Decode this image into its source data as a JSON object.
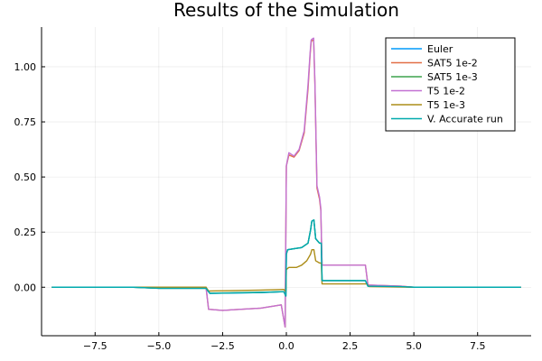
{
  "chart_data": {
    "type": "line",
    "title": "Results of the Simulation",
    "xlabel": "",
    "ylabel": "",
    "xlim": [
      -9.6,
      9.6
    ],
    "ylim": [
      -0.22,
      1.18
    ],
    "xticks": [
      -7.5,
      -5.0,
      -2.5,
      0.0,
      2.5,
      5.0,
      7.5
    ],
    "xtick_labels": [
      "−7.5",
      "−5.0",
      "−2.5",
      "0.0",
      "2.5",
      "5.0",
      "7.5"
    ],
    "yticks": [
      0.0,
      0.25,
      0.5,
      0.75,
      1.0
    ],
    "ytick_labels": [
      "0.00",
      "0.25",
      "0.50",
      "0.75",
      "1.00"
    ],
    "grid": true,
    "legend_position": "top-right",
    "series": [
      {
        "name": "Euler",
        "color": "#009AFA",
        "points": [
          [
            -9.2,
            0.0
          ],
          [
            -6.0,
            0.0
          ],
          [
            -5.0,
            -0.005
          ],
          [
            -3.15,
            -0.005
          ],
          [
            -3.0,
            -0.028
          ],
          [
            -2.5,
            -0.027
          ],
          [
            -1.0,
            -0.024
          ],
          [
            -0.1,
            -0.02
          ],
          [
            -0.02,
            -0.04
          ],
          [
            0.0,
            0.15
          ],
          [
            0.05,
            0.17
          ],
          [
            0.3,
            0.175
          ],
          [
            0.6,
            0.18
          ],
          [
            0.85,
            0.2
          ],
          [
            0.95,
            0.26
          ],
          [
            1.0,
            0.3
          ],
          [
            1.08,
            0.305
          ],
          [
            1.15,
            0.22
          ],
          [
            1.3,
            0.2
          ],
          [
            1.37,
            0.2
          ],
          [
            1.4,
            0.03
          ],
          [
            2.0,
            0.03
          ],
          [
            3.0,
            0.03
          ],
          [
            3.1,
            0.03
          ],
          [
            3.2,
            0.005
          ],
          [
            4.5,
            0.003
          ],
          [
            5.0,
            0.0
          ],
          [
            9.2,
            0.0
          ]
        ]
      },
      {
        "name": "SAT5 1e-2",
        "color": "#E26F46",
        "points": [
          [
            -9.2,
            0.0
          ],
          [
            -3.15,
            0.0
          ],
          [
            -3.05,
            -0.1
          ],
          [
            -2.5,
            -0.105
          ],
          [
            -1.0,
            -0.095
          ],
          [
            -0.2,
            -0.08
          ],
          [
            -0.05,
            -0.18
          ],
          [
            0.0,
            0.55
          ],
          [
            0.1,
            0.6
          ],
          [
            0.3,
            0.59
          ],
          [
            0.5,
            0.62
          ],
          [
            0.7,
            0.7
          ],
          [
            0.85,
            0.9
          ],
          [
            0.93,
            1.05
          ],
          [
            0.97,
            1.11
          ],
          [
            1.0,
            1.12
          ],
          [
            1.07,
            1.12
          ],
          [
            1.12,
            0.92
          ],
          [
            1.2,
            0.45
          ],
          [
            1.3,
            0.4
          ],
          [
            1.35,
            0.35
          ],
          [
            1.4,
            0.1
          ],
          [
            2.0,
            0.1
          ],
          [
            3.0,
            0.1
          ],
          [
            3.1,
            0.1
          ],
          [
            3.2,
            0.01
          ],
          [
            4.5,
            0.005
          ],
          [
            5.0,
            0.0
          ],
          [
            9.2,
            0.0
          ]
        ]
      },
      {
        "name": "SAT5 1e-3",
        "color": "#3DA44D",
        "points": [
          [
            -9.2,
            0.0
          ],
          [
            -6.0,
            0.0
          ],
          [
            -5.0,
            -0.005
          ],
          [
            -3.15,
            -0.005
          ],
          [
            -3.0,
            -0.027
          ],
          [
            -2.5,
            -0.026
          ],
          [
            -1.0,
            -0.023
          ],
          [
            -0.1,
            -0.02
          ],
          [
            -0.02,
            -0.04
          ],
          [
            0.0,
            0.15
          ],
          [
            0.05,
            0.17
          ],
          [
            0.3,
            0.175
          ],
          [
            0.6,
            0.18
          ],
          [
            0.85,
            0.2
          ],
          [
            0.95,
            0.26
          ],
          [
            1.0,
            0.3
          ],
          [
            1.08,
            0.305
          ],
          [
            1.15,
            0.22
          ],
          [
            1.3,
            0.2
          ],
          [
            1.37,
            0.2
          ],
          [
            1.4,
            0.03
          ],
          [
            2.0,
            0.03
          ],
          [
            3.0,
            0.03
          ],
          [
            3.1,
            0.03
          ],
          [
            3.2,
            0.005
          ],
          [
            4.5,
            0.003
          ],
          [
            5.0,
            0.0
          ],
          [
            9.2,
            0.0
          ]
        ]
      },
      {
        "name": "T5 1e-2",
        "color": "#C271D2",
        "points": [
          [
            -9.2,
            0.0
          ],
          [
            -3.15,
            0.0
          ],
          [
            -3.05,
            -0.1
          ],
          [
            -2.5,
            -0.105
          ],
          [
            -1.0,
            -0.095
          ],
          [
            -0.2,
            -0.08
          ],
          [
            -0.05,
            -0.18
          ],
          [
            0.0,
            0.55
          ],
          [
            0.1,
            0.61
          ],
          [
            0.3,
            0.595
          ],
          [
            0.5,
            0.625
          ],
          [
            0.7,
            0.71
          ],
          [
            0.85,
            0.92
          ],
          [
            0.93,
            1.06
          ],
          [
            0.97,
            1.12
          ],
          [
            1.0,
            1.125
          ],
          [
            1.07,
            1.13
          ],
          [
            1.12,
            0.93
          ],
          [
            1.2,
            0.46
          ],
          [
            1.3,
            0.41
          ],
          [
            1.35,
            0.36
          ],
          [
            1.4,
            0.1
          ],
          [
            2.0,
            0.1
          ],
          [
            3.0,
            0.1
          ],
          [
            3.1,
            0.1
          ],
          [
            3.2,
            0.01
          ],
          [
            4.5,
            0.005
          ],
          [
            5.0,
            0.0
          ],
          [
            9.2,
            0.0
          ]
        ]
      },
      {
        "name": "T5 1e-3",
        "color": "#AC8D18",
        "points": [
          [
            -9.2,
            0.0
          ],
          [
            -3.15,
            0.0
          ],
          [
            -3.05,
            -0.017
          ],
          [
            -2.5,
            -0.016
          ],
          [
            -1.0,
            -0.013
          ],
          [
            -0.1,
            -0.01
          ],
          [
            -0.02,
            -0.02
          ],
          [
            0.0,
            0.08
          ],
          [
            0.1,
            0.09
          ],
          [
            0.4,
            0.09
          ],
          [
            0.6,
            0.1
          ],
          [
            0.8,
            0.12
          ],
          [
            0.95,
            0.15
          ],
          [
            1.0,
            0.17
          ],
          [
            1.08,
            0.17
          ],
          [
            1.15,
            0.12
          ],
          [
            1.3,
            0.11
          ],
          [
            1.37,
            0.11
          ],
          [
            1.4,
            0.015
          ],
          [
            2.0,
            0.015
          ],
          [
            3.0,
            0.015
          ],
          [
            3.15,
            0.015
          ],
          [
            3.25,
            0.003
          ],
          [
            5.0,
            0.0
          ],
          [
            9.2,
            0.0
          ]
        ]
      },
      {
        "name": "V. Accurate run",
        "color": "#00A9AD",
        "points": [
          [
            -9.2,
            0.0
          ],
          [
            -6.0,
            0.0
          ],
          [
            -5.0,
            -0.005
          ],
          [
            -3.15,
            -0.005
          ],
          [
            -3.0,
            -0.028
          ],
          [
            -2.5,
            -0.027
          ],
          [
            -1.0,
            -0.024
          ],
          [
            -0.1,
            -0.02
          ],
          [
            -0.02,
            -0.04
          ],
          [
            0.0,
            0.15
          ],
          [
            0.05,
            0.17
          ],
          [
            0.3,
            0.175
          ],
          [
            0.6,
            0.18
          ],
          [
            0.85,
            0.2
          ],
          [
            0.95,
            0.26
          ],
          [
            1.0,
            0.3
          ],
          [
            1.08,
            0.305
          ],
          [
            1.15,
            0.22
          ],
          [
            1.3,
            0.2
          ],
          [
            1.37,
            0.2
          ],
          [
            1.4,
            0.03
          ],
          [
            2.0,
            0.03
          ],
          [
            3.0,
            0.03
          ],
          [
            3.1,
            0.03
          ],
          [
            3.2,
            0.005
          ],
          [
            4.5,
            0.003
          ],
          [
            5.0,
            0.0
          ],
          [
            9.2,
            0.0
          ]
        ]
      }
    ]
  }
}
